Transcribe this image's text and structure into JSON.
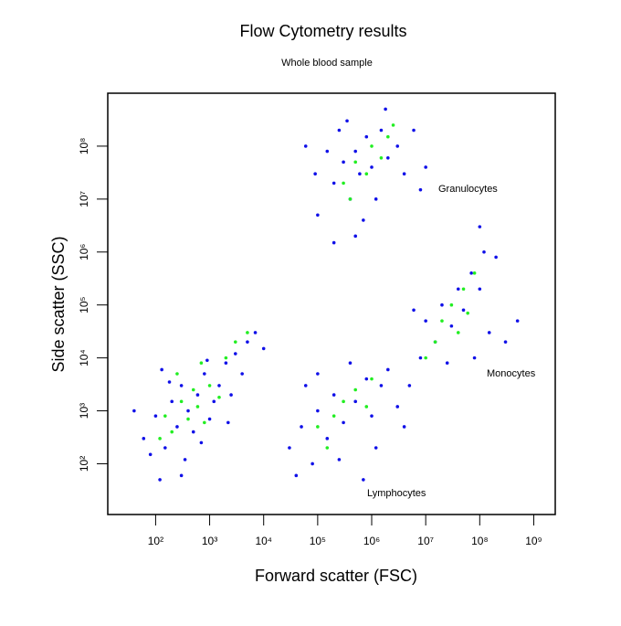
{
  "chart_data": {
    "type": "scatter",
    "title": "Flow Cytometry results",
    "subtitle": "Whole blood sample",
    "x_label": "Forward scatter (FSC)",
    "y_label": "Side scatter (SSC)",
    "annotations": [
      "Granulocytes",
      "Monocytes",
      "Lymphocytes"
    ],
    "xscale": "log",
    "yscale": "log",
    "xlim": [
      13,
      2500000000
    ],
    "ylim": [
      11,
      1000000000
    ],
    "xticks": [
      {
        "value": 100,
        "label": "10²"
      },
      {
        "value": 1000,
        "label": "10³"
      },
      {
        "value": 10000,
        "label": "10⁴"
      },
      {
        "value": 100000,
        "label": "10⁵"
      },
      {
        "value": 1000000,
        "label": "10⁶"
      },
      {
        "value": 10000000,
        "label": "10⁷"
      },
      {
        "value": 100000000,
        "label": "10⁸"
      },
      {
        "value": 1000000000,
        "label": "10⁹"
      }
    ],
    "yticks": [
      {
        "value": 100,
        "label": "10²"
      },
      {
        "value": 1000,
        "label": "10³"
      },
      {
        "value": 10000,
        "label": "10⁴"
      },
      {
        "value": 100000,
        "label": "10⁵"
      },
      {
        "value": 1000000,
        "label": "10⁶"
      },
      {
        "value": 10000000,
        "label": "10⁷"
      },
      {
        "value": 100000000,
        "label": "10⁸"
      }
    ],
    "series": [
      {
        "color": "#1010e8",
        "x": [
          60,
          100,
          150,
          200,
          250,
          300,
          400,
          500,
          600,
          800,
          1000,
          1200,
          1500,
          2000,
          2500,
          3000,
          4000,
          80,
          120,
          180,
          350,
          700,
          900,
          5000,
          7000,
          40,
          130,
          2200,
          10000,
          300,
          200000.0,
          300000.0,
          400000.0,
          500000.0,
          600000.0,
          800000.0,
          1000000.0,
          1500000.0,
          2000000.0,
          3000000.0,
          100000.0,
          150000.0,
          250000.0,
          700000.0,
          1200000.0,
          4000000.0,
          6000000.0,
          90000.0,
          350000.0,
          8000000.0,
          1800000.0,
          500000.0,
          200000.0,
          10000000.0,
          60000.0,
          30000.0,
          50000.0,
          80000.0,
          100000.0,
          150000.0,
          200000.0,
          300000.0,
          500000.0,
          800000.0,
          1000000.0,
          1500000.0,
          2000000.0,
          40000.0,
          60000.0,
          250000.0,
          400000.0,
          1200000.0,
          3000000.0,
          700000.0,
          100000.0,
          5000000.0,
          8000000.0,
          10000000.0,
          15000000.0,
          20000000.0,
          30000000.0,
          40000000.0,
          50000000.0,
          70000000.0,
          100000000.0,
          120000000.0,
          6000000.0,
          25000000.0,
          80000000.0,
          150000000.0,
          300000000.0,
          500000000.0,
          100000000.0,
          4000000.0,
          200000000.0
        ],
        "y": [
          300,
          800,
          200,
          1500,
          500,
          3000,
          1000,
          400,
          2000,
          5000,
          700,
          1500,
          3000,
          8000,
          2000,
          12000,
          5000,
          150,
          50,
          3500,
          120,
          250,
          9000,
          20000,
          30000,
          1000,
          6000,
          600,
          15000,
          60,
          20000000.0,
          50000000.0,
          10000000.0,
          80000000.0,
          30000000.0,
          150000000.0,
          40000000.0,
          200000000.0,
          60000000.0,
          100000000.0,
          5000000.0,
          80000000.0,
          200000000.0,
          4000000.0,
          10000000.0,
          30000000.0,
          200000000.0,
          30000000.0,
          300000000.0,
          15000000.0,
          500000000.0,
          2000000.0,
          1500000.0,
          40000000.0,
          100000000.0,
          200,
          500,
          100,
          1000,
          300,
          2000,
          600,
          1500,
          4000,
          800,
          3000,
          6000,
          60,
          3000,
          120,
          8000,
          200,
          1200,
          50,
          5000,
          3000,
          10000.0,
          50000.0,
          20000.0,
          100000.0,
          40000.0,
          200000.0,
          80000.0,
          400000.0,
          200000.0,
          1000000.0,
          80000.0,
          8000.0,
          10000.0,
          30000.0,
          20000.0,
          50000.0,
          3000000.0,
          500,
          800000.0
        ]
      },
      {
        "color": "#22ee22",
        "x": [
          150,
          200,
          300,
          400,
          500,
          600,
          800,
          1000,
          1500,
          250,
          2000,
          3000,
          120,
          700,
          5000,
          300000.0,
          500000.0,
          800000.0,
          1000000.0,
          1500000.0,
          2000000.0,
          400000.0,
          2500000.0,
          100000.0,
          200000.0,
          300000.0,
          500000.0,
          800000.0,
          150000.0,
          1000000.0,
          15000000.0,
          20000000.0,
          30000000.0,
          40000000.0,
          50000000.0,
          80000000.0,
          10000000.0,
          60000000.0
        ],
        "y": [
          800,
          400,
          1500,
          700,
          2500,
          1200,
          600,
          3000,
          1800,
          5000,
          10000.0,
          20000,
          300,
          8000,
          30000.0,
          20000000.0,
          50000000.0,
          30000000.0,
          100000000.0,
          60000000.0,
          150000000.0,
          10000000.0,
          250000000.0,
          500,
          800,
          1500,
          2500,
          1200,
          200,
          4000,
          20000.0,
          50000.0,
          100000.0,
          30000.0,
          200000.0,
          400000.0,
          10000.0,
          70000.0
        ]
      }
    ]
  }
}
